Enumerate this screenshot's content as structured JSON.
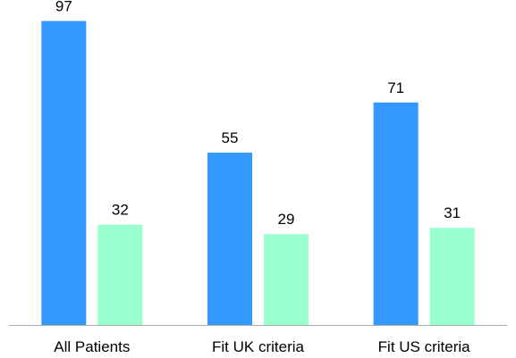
{
  "chart_data": {
    "type": "bar",
    "categories": [
      "All Patients",
      "Fit UK criteria",
      "Fit US criteria"
    ],
    "series": [
      {
        "values": [
          97,
          55,
          71
        ],
        "color": "#3399ff"
      },
      {
        "values": [
          32,
          29,
          31
        ],
        "color": "#99ffcc"
      }
    ],
    "ylim": [
      0,
      100
    ],
    "grid": false,
    "legend": "none",
    "data_labels": true
  }
}
